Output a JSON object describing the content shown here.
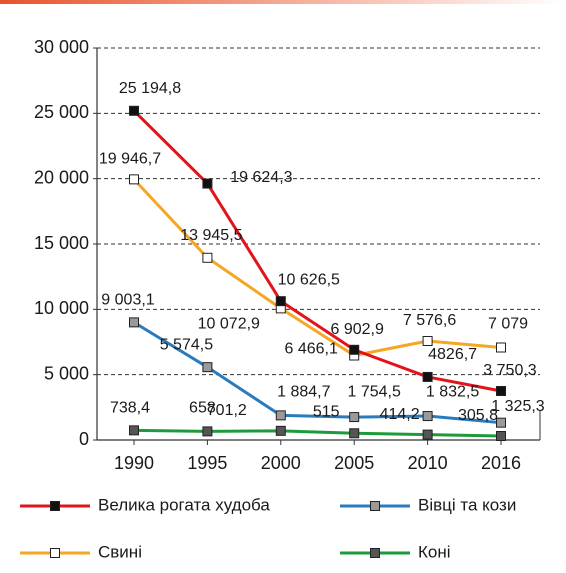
{
  "chart_data": {
    "type": "line",
    "categories": [
      "1990",
      "1995",
      "2000",
      "2005",
      "2010",
      "2016"
    ],
    "series": [
      {
        "name": "Велика рогата худоба",
        "color": "#e3131b",
        "marker_color": "#111111",
        "values": [
          25194.8,
          19624.3,
          10626.5,
          6902.9,
          4826.7,
          3750.3
        ],
        "value_labels": [
          "25 194,8",
          "19 624,3",
          "10 626,5",
          "6 902,9",
          "4826,7",
          "3 750,3"
        ]
      },
      {
        "name": "Вівці та кози",
        "color": "#2a7bbd",
        "marker_color": "#9a9a9a",
        "values": [
          9003.1,
          5574.5,
          1884.7,
          1754.5,
          1832.5,
          1325.3
        ],
        "value_labels": [
          "9 003,1",
          "5 574,5",
          "1 884,7",
          "1 754,5",
          "1 832,5",
          "1 325,3"
        ]
      },
      {
        "name": "Свині",
        "color": "#f5a623",
        "marker_color": "#ffffff",
        "values": [
          19946.7,
          13945.5,
          10072.9,
          6466.1,
          7576.6,
          7079
        ],
        "value_labels": [
          "19 946,7",
          "13 945,5",
          "10 072,9",
          "6 466,1",
          "7 576,6",
          "7 079"
        ]
      },
      {
        "name": "Коні",
        "color": "#1f9a3a",
        "marker_color": "#555555",
        "values": [
          738.4,
          658,
          701.2,
          515,
          414.2,
          305.8
        ],
        "value_labels": [
          "738,4",
          "658",
          "701,2",
          "515",
          "414,2",
          "305,8"
        ]
      }
    ],
    "ylim": [
      0,
      30000
    ],
    "yticks": [
      0,
      {
        "value": 5000,
        "label": "5 000"
      },
      {
        "value": 10000,
        "label": "10 000"
      },
      {
        "value": 15000,
        "label": "15 000"
      },
      {
        "value": 20000,
        "label": "20 000"
      },
      {
        "value": 25000,
        "label": "25 000"
      },
      {
        "value": 30000,
        "label": "30 000"
      }
    ],
    "grid": true
  }
}
